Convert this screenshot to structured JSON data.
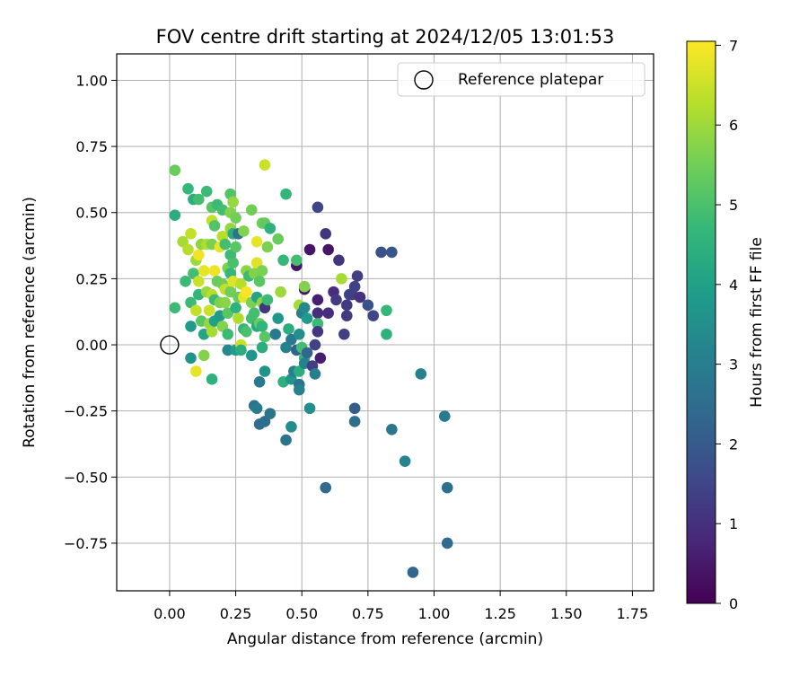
{
  "chart_data": {
    "type": "scatter",
    "title": "FOV centre drift starting at 2024/12/05 13:01:53",
    "xlabel": "Angular distance from reference (arcmin)",
    "ylabel": "Rotation from reference (arcmin)",
    "xlim": [
      -0.2,
      1.83
    ],
    "ylim": [
      -0.93,
      1.1
    ],
    "xticks": [
      0.0,
      0.25,
      0.5,
      0.75,
      1.0,
      1.25,
      1.5,
      1.75
    ],
    "xtick_labels": [
      "0.00",
      "0.25",
      "0.50",
      "0.75",
      "1.00",
      "1.25",
      "1.50",
      "1.75"
    ],
    "yticks": [
      -0.75,
      -0.5,
      -0.25,
      0.0,
      0.25,
      0.5,
      0.75,
      1.0
    ],
    "ytick_labels": [
      "−0.75",
      "−0.50",
      "−0.25",
      "0.00",
      "0.25",
      "0.50",
      "0.75",
      "1.00"
    ],
    "grid": true,
    "legend": {
      "position": "top-right",
      "entries": [
        "Reference platepar"
      ]
    },
    "reference_point": {
      "x": 0.0,
      "y": 0.0,
      "marker": "open-circle"
    },
    "colorbar": {
      "label": "Hours from first FF file",
      "range": [
        0,
        7.05
      ],
      "ticks": [
        0,
        1,
        2,
        3,
        4,
        5,
        6,
        7
      ],
      "tick_labels": [
        "0",
        "1",
        "2",
        "3",
        "4",
        "5",
        "6",
        "7"
      ],
      "colormap": "viridis",
      "stops": [
        "#440154",
        "#482878",
        "#3e4989",
        "#31688e",
        "#26828e",
        "#1f9e89",
        "#35b779",
        "#6ece58",
        "#b5de2b",
        "#fde725"
      ]
    },
    "points": [
      [
        0.02,
        0.66,
        5.4
      ],
      [
        0.02,
        0.49,
        4.4
      ],
      [
        0.02,
        0.14,
        4.8
      ],
      [
        0.05,
        0.39,
        6.1
      ],
      [
        0.06,
        0.24,
        4.8
      ],
      [
        0.07,
        0.59,
        4.7
      ],
      [
        0.07,
        0.36,
        6.3
      ],
      [
        0.08,
        0.42,
        6.4
      ],
      [
        0.08,
        0.16,
        4.8
      ],
      [
        0.08,
        0.07,
        3.8
      ],
      [
        0.09,
        0.27,
        4.9
      ],
      [
        0.08,
        -0.05,
        3.6
      ],
      [
        0.09,
        0.55,
        4.4
      ],
      [
        0.1,
        0.32,
        6.0
      ],
      [
        0.1,
        0.13,
        6.4
      ],
      [
        0.1,
        -0.1,
        6.8
      ],
      [
        0.11,
        0.55,
        4.9
      ],
      [
        0.11,
        0.34,
        6.9
      ],
      [
        0.11,
        0.24,
        6.5
      ],
      [
        0.11,
        0.19,
        4.6
      ],
      [
        0.12,
        0.38,
        5.8
      ],
      [
        0.12,
        0.09,
        5.2
      ],
      [
        0.13,
        0.28,
        6.8
      ],
      [
        0.13,
        0.04,
        4.1
      ],
      [
        0.13,
        -0.04,
        5.7
      ],
      [
        0.14,
        0.58,
        4.8
      ],
      [
        0.14,
        0.38,
        6.2
      ],
      [
        0.14,
        0.2,
        5.9
      ],
      [
        0.15,
        0.13,
        6.5
      ],
      [
        0.15,
        0.08,
        5.9
      ],
      [
        0.16,
        0.52,
        5.2
      ],
      [
        0.16,
        0.47,
        6.4
      ],
      [
        0.16,
        0.38,
        5.6
      ],
      [
        0.16,
        0.19,
        6.3
      ],
      [
        0.16,
        0.05,
        6.1
      ],
      [
        0.16,
        -0.13,
        4.5
      ],
      [
        0.17,
        0.45,
        5.1
      ],
      [
        0.17,
        0.28,
        6.9
      ],
      [
        0.17,
        0.17,
        4.8
      ],
      [
        0.17,
        0.09,
        4.0
      ],
      [
        0.18,
        0.53,
        4.8
      ],
      [
        0.18,
        0.24,
        5.4
      ],
      [
        0.19,
        0.37,
        6.8
      ],
      [
        0.19,
        0.16,
        5.6
      ],
      [
        0.19,
        0.11,
        3.8
      ],
      [
        0.2,
        0.51,
        4.9
      ],
      [
        0.2,
        0.41,
        6.3
      ],
      [
        0.2,
        0.23,
        5.5
      ],
      [
        0.2,
        0.07,
        5.7
      ],
      [
        0.21,
        0.38,
        4.9
      ],
      [
        0.21,
        0.21,
        6.4
      ],
      [
        0.21,
        0.16,
        5.8
      ],
      [
        0.22,
        0.29,
        5.6
      ],
      [
        0.22,
        0.12,
        5.2
      ],
      [
        0.22,
        0.04,
        4.8
      ],
      [
        0.22,
        -0.02,
        3.3
      ],
      [
        0.23,
        0.57,
        5.1
      ],
      [
        0.23,
        0.5,
        5.7
      ],
      [
        0.23,
        0.44,
        5.9
      ],
      [
        0.23,
        0.34,
        4.8
      ],
      [
        0.23,
        0.27,
        4.7
      ],
      [
        0.23,
        0.2,
        5.5
      ],
      [
        0.24,
        0.54,
        5.9
      ],
      [
        0.24,
        0.42,
        4.4
      ],
      [
        0.24,
        0.31,
        5.0
      ],
      [
        0.24,
        0.24,
        6.7
      ],
      [
        0.25,
        0.48,
        5.5
      ],
      [
        0.25,
        0.37,
        5.2
      ],
      [
        0.25,
        0.14,
        4.5
      ],
      [
        0.25,
        -0.02,
        3.9
      ],
      [
        0.26,
        0.42,
        2.7
      ],
      [
        0.26,
        0.18,
        5.4
      ],
      [
        0.26,
        0.1,
        6.2
      ],
      [
        0.27,
        0.23,
        6.3
      ],
      [
        0.27,
        0.0,
        6.5
      ],
      [
        0.27,
        -0.02,
        4.4
      ],
      [
        0.28,
        0.43,
        5.7
      ],
      [
        0.28,
        0.18,
        6.8
      ],
      [
        0.28,
        0.06,
        4.6
      ],
      [
        0.29,
        0.28,
        5.8
      ],
      [
        0.29,
        0.2,
        7.0
      ],
      [
        0.29,
        0.05,
        5.0
      ],
      [
        0.3,
        0.26,
        4.8
      ],
      [
        0.31,
        0.51,
        5.5
      ],
      [
        0.31,
        0.16,
        5.6
      ],
      [
        0.31,
        0.1,
        4.9
      ],
      [
        0.31,
        -0.04,
        3.7
      ],
      [
        0.32,
        0.27,
        5.7
      ],
      [
        0.32,
        0.12,
        4.9
      ],
      [
        0.32,
        -0.23,
        2.7
      ],
      [
        0.33,
        0.39,
        6.8
      ],
      [
        0.33,
        0.31,
        6.7
      ],
      [
        0.33,
        0.18,
        4.1
      ],
      [
        0.33,
        0.07,
        4.2
      ],
      [
        0.33,
        -0.24,
        2.9
      ],
      [
        0.34,
        0.24,
        5.2
      ],
      [
        0.34,
        0.08,
        5.4
      ],
      [
        0.34,
        -0.14,
        2.9
      ],
      [
        0.34,
        -0.3,
        2.4
      ],
      [
        0.35,
        0.46,
        5.5
      ],
      [
        0.35,
        0.28,
        5.6
      ],
      [
        0.35,
        0.16,
        5.8
      ],
      [
        0.35,
        0.07,
        4.6
      ],
      [
        0.35,
        -0.01,
        4.4
      ],
      [
        0.36,
        0.68,
        6.5
      ],
      [
        0.36,
        0.46,
        5.3
      ],
      [
        0.36,
        0.14,
        1.1
      ],
      [
        0.36,
        0.03,
        5.2
      ],
      [
        0.36,
        -0.1,
        3.6
      ],
      [
        0.36,
        -0.29,
        2.5
      ],
      [
        0.37,
        0.37,
        5.6
      ],
      [
        0.37,
        0.17,
        4.8
      ],
      [
        0.38,
        0.44,
        4.5
      ],
      [
        0.38,
        -0.26,
        2.7
      ],
      [
        0.4,
        0.04,
        2.9
      ],
      [
        0.41,
        0.4,
        5.4
      ],
      [
        0.41,
        0.1,
        3.7
      ],
      [
        0.42,
        0.2,
        6.0
      ],
      [
        0.43,
        0.32,
        4.7
      ],
      [
        0.43,
        -0.14,
        4.5
      ],
      [
        0.44,
        0.57,
        4.6
      ],
      [
        0.44,
        -0.01,
        3.1
      ],
      [
        0.44,
        -0.36,
        2.7
      ],
      [
        0.45,
        0.06,
        4.4
      ],
      [
        0.46,
        0.02,
        2.9
      ],
      [
        0.46,
        -0.13,
        3.7
      ],
      [
        0.46,
        -0.31,
        3.4
      ],
      [
        0.47,
        -0.1,
        3.0
      ],
      [
        0.48,
        0.3,
        0.4
      ],
      [
        0.48,
        0.32,
        4.9
      ],
      [
        0.48,
        -0.02,
        2.2
      ],
      [
        0.49,
        0.15,
        6.1
      ],
      [
        0.49,
        0.04,
        3.5
      ],
      [
        0.49,
        -0.1,
        4.4
      ],
      [
        0.49,
        -0.15,
        2.7
      ],
      [
        0.49,
        -0.17,
        3.1
      ],
      [
        0.5,
        0.12,
        3.0
      ],
      [
        0.5,
        -0.01,
        4.9
      ],
      [
        0.51,
        0.21,
        0.4
      ],
      [
        0.51,
        0.22,
        5.7
      ],
      [
        0.51,
        0.14,
        3.3
      ],
      [
        0.51,
        -0.05,
        4.6
      ],
      [
        0.51,
        -0.07,
        3.1
      ],
      [
        0.52,
        0.1,
        3.8
      ],
      [
        0.52,
        -0.03,
        2.3
      ],
      [
        0.53,
        0.36,
        0.4
      ],
      [
        0.53,
        -0.24,
        3.5
      ],
      [
        0.54,
        -0.08,
        1.3
      ],
      [
        0.55,
        0.0,
        1.4
      ],
      [
        0.55,
        -0.11,
        3.0
      ],
      [
        0.56,
        0.17,
        0.6
      ],
      [
        0.56,
        0.12,
        0.9
      ],
      [
        0.56,
        0.08,
        4.8
      ],
      [
        0.56,
        0.05,
        1.1
      ],
      [
        0.56,
        0.52,
        1.5
      ],
      [
        0.57,
        -0.05,
        0.6
      ],
      [
        0.59,
        0.42,
        1.1
      ],
      [
        0.59,
        -0.54,
        2.4
      ],
      [
        0.6,
        0.36,
        0.4
      ],
      [
        0.6,
        0.12,
        0.9
      ],
      [
        0.62,
        0.2,
        0.9
      ],
      [
        0.63,
        0.17,
        1.2
      ],
      [
        0.64,
        0.32,
        1.1
      ],
      [
        0.65,
        0.25,
        6.1
      ],
      [
        0.66,
        0.04,
        1.3
      ],
      [
        0.67,
        0.15,
        1.2
      ],
      [
        0.67,
        0.11,
        1.2
      ],
      [
        0.68,
        0.19,
        1.5
      ],
      [
        0.69,
        0.19,
        1.3
      ],
      [
        0.7,
        0.22,
        1.4
      ],
      [
        0.7,
        -0.24,
        2.1
      ],
      [
        0.7,
        -0.29,
        2.6
      ],
      [
        0.71,
        0.26,
        1.3
      ],
      [
        0.72,
        0.18,
        1.0
      ],
      [
        0.75,
        0.15,
        1.8
      ],
      [
        0.77,
        0.11,
        1.5
      ],
      [
        0.8,
        0.35,
        1.8
      ],
      [
        0.82,
        0.04,
        4.5
      ],
      [
        0.82,
        0.13,
        4.7
      ],
      [
        0.84,
        0.35,
        1.9
      ],
      [
        0.84,
        -0.32,
        2.8
      ],
      [
        0.89,
        -0.44,
        3.2
      ],
      [
        0.92,
        -0.86,
        2.3
      ],
      [
        0.95,
        -0.11,
        3.1
      ],
      [
        1.04,
        -0.27,
        2.9
      ],
      [
        1.05,
        -0.54,
        2.6
      ],
      [
        1.05,
        -0.75,
        2.4
      ]
    ]
  }
}
